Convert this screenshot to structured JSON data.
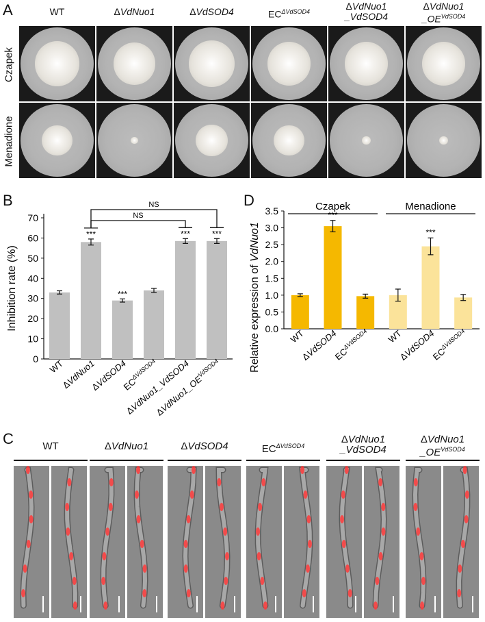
{
  "panels": {
    "a": "A",
    "b": "B",
    "c": "C",
    "d": "D"
  },
  "strains": [
    {
      "pre": "WT",
      "it": "",
      "sup": "",
      "line2": ""
    },
    {
      "pre": "Δ",
      "it": "VdNuo1",
      "sup": "",
      "line2": ""
    },
    {
      "pre": "Δ",
      "it": "VdSOD4",
      "sup": "",
      "line2": ""
    },
    {
      "pre": "EC",
      "it": "",
      "sup": "ΔVdSOD4",
      "line2": ""
    },
    {
      "pre": "Δ",
      "it": "VdNuo1",
      "sup": "",
      "line2": "_VdSOD4"
    },
    {
      "pre": "Δ",
      "it": "VdNuo1",
      "sup": "",
      "line2": "_OE",
      "line2sup": "VdSOD4"
    }
  ],
  "rows": [
    "Czapek",
    "Menadione"
  ],
  "colony_diameters": {
    "Czapek": [
      0.62,
      0.58,
      0.64,
      0.6,
      0.6,
      0.6
    ],
    "Menadione": [
      0.42,
      0.1,
      0.44,
      0.42,
      0.12,
      0.12
    ]
  },
  "chart_data": [
    {
      "type": "bar",
      "title": "",
      "ylabel": "Inhibition rate (%)",
      "xlabel": "",
      "ylim": [
        0,
        70
      ],
      "yticks": [
        0,
        10,
        20,
        30,
        40,
        50,
        60,
        70
      ],
      "categories": [
        "WT",
        "ΔVdNuo1",
        "ΔVdSOD4",
        "ECΔVdSOD4",
        "ΔVdNuo1_VdSOD4",
        "ΔVdNuo1_OEVdSOD4"
      ],
      "values": [
        33.0,
        58.0,
        29.0,
        34.0,
        58.5,
        58.5
      ],
      "errors": [
        0.8,
        1.5,
        0.8,
        1.0,
        1.2,
        1.2
      ],
      "significance": [
        "",
        "***",
        "***",
        "",
        "***",
        "***"
      ],
      "comparisons": [
        {
          "from": 1,
          "to": 5,
          "label": "NS"
        },
        {
          "from": 1,
          "to": 4,
          "label": "NS"
        }
      ],
      "bar_color": "#c0c0c0",
      "grid": false
    },
    {
      "type": "bar",
      "title": "",
      "ylabel": "Relative expression of VdNuo1",
      "xlabel": "",
      "ylim": [
        0,
        3.5
      ],
      "yticks": [
        0.0,
        0.5,
        1.0,
        1.5,
        2.0,
        2.5,
        3.0,
        3.5
      ],
      "groups": [
        "Czapek",
        "Menadione"
      ],
      "categories": [
        "WT",
        "ΔVdSOD4",
        "ECΔVdSOD4",
        "WT",
        "ΔVdSOD4",
        "ECΔVdSOD4"
      ],
      "values": [
        1.0,
        3.05,
        0.97,
        1.0,
        2.45,
        0.93
      ],
      "errors": [
        0.04,
        0.17,
        0.06,
        0.18,
        0.25,
        0.09
      ],
      "significance": [
        "",
        "***",
        "",
        "",
        "***",
        ""
      ],
      "colors": [
        "#f5b800",
        "#f5b800",
        "#f5b800",
        "#fbe39a",
        "#fbe39a",
        "#fbe39a"
      ],
      "grid": false
    }
  ]
}
